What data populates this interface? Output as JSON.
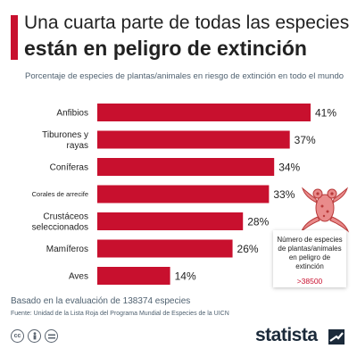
{
  "header": {
    "title_line1": "Una cuarta parte de todas las especies",
    "title_line2": "están en peligro de extinción",
    "subtitle": "Porcentaje de especies de plantas/animales en riesgo de extinción en todo el mundo"
  },
  "chart_data": {
    "type": "bar",
    "orientation": "horizontal",
    "categories": [
      "Anfibios",
      "Tiburones y rayas",
      "Coníferas",
      "Corales de arrecife",
      "Crustáceos seleccionados",
      "Mamíferos",
      "Aves"
    ],
    "category_lines": [
      [
        "Anfibios"
      ],
      [
        "Tiburones y",
        "rayas"
      ],
      [
        "Coníferas"
      ],
      [
        "Corales de arrecife"
      ],
      [
        "Crustáceos",
        "seleccionados"
      ],
      [
        "Mamíferos"
      ],
      [
        "Aves"
      ]
    ],
    "values": [
      41,
      37,
      34,
      33,
      28,
      26,
      14
    ],
    "value_labels": [
      "41%",
      "37%",
      "34%",
      "33%",
      "28%",
      "26%",
      "14%"
    ],
    "xlim": [
      0,
      41
    ],
    "bar_color": "#c8102e",
    "grid": false,
    "legend": "none"
  },
  "info_card": {
    "label": "Número de especies de plantas/animales en peligro de extinción",
    "value": ">38500"
  },
  "footer": {
    "note": "Basado en la evaluación de 138374 especies",
    "source": "Fuente: Unidad de la Lista Roja del Programa Mundial de Especies de la UICN",
    "license_icons": [
      "creative-commons-icon",
      "attribution-icon",
      "no-derivatives-icon"
    ],
    "brand": "statista"
  },
  "colors": {
    "accent": "#c8102e",
    "text_dark": "#222222",
    "text_muted": "#4f6170",
    "brand_navy": "#1b2a3a"
  }
}
